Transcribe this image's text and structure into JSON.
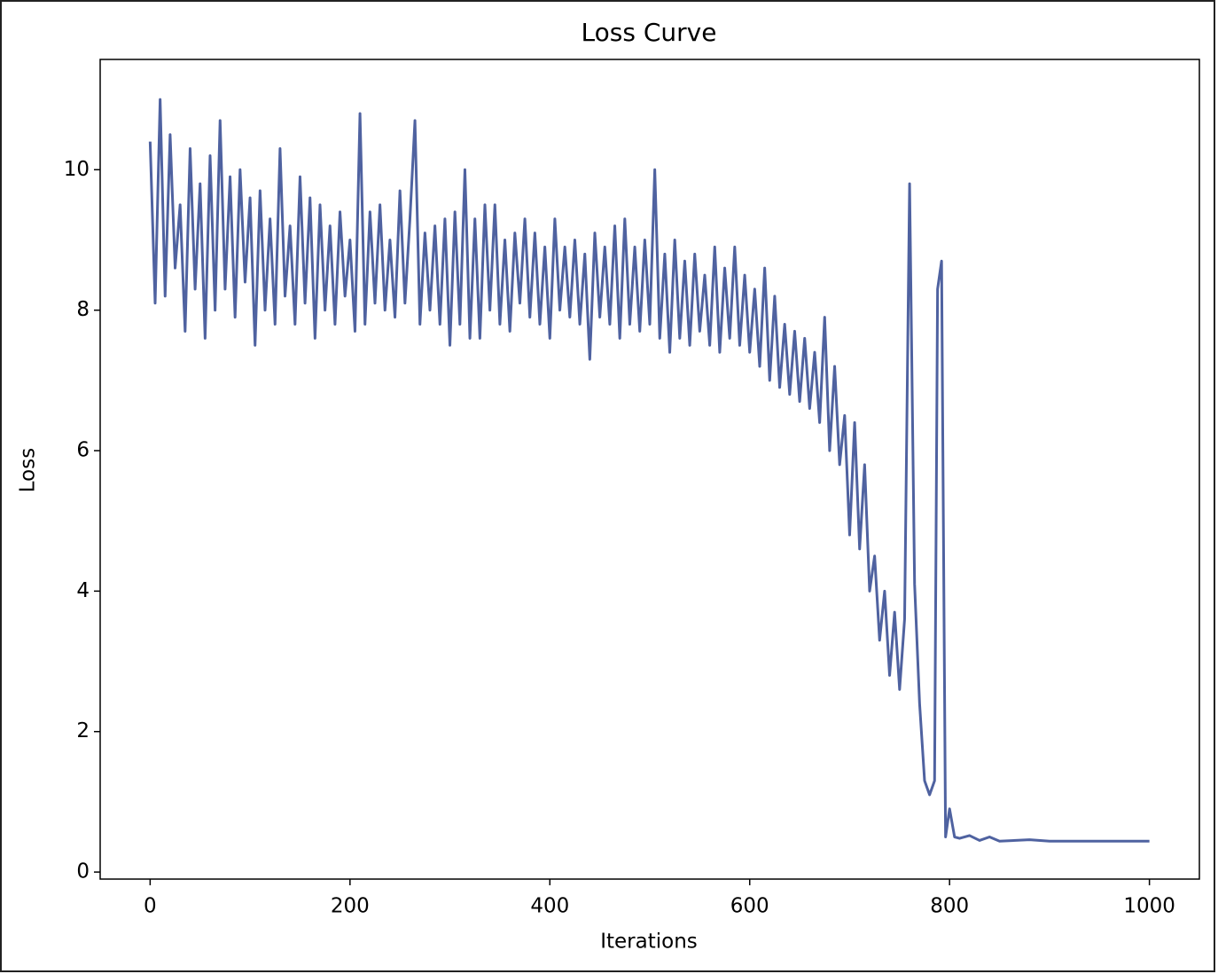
{
  "chart_data": {
    "type": "line",
    "title": "Loss Curve",
    "x_label": "Iterations",
    "y_label": "Loss",
    "x": [
      0,
      5,
      10,
      15,
      20,
      25,
      30,
      35,
      40,
      45,
      50,
      55,
      60,
      65,
      70,
      75,
      80,
      85,
      90,
      95,
      100,
      105,
      110,
      115,
      120,
      125,
      130,
      135,
      140,
      145,
      150,
      155,
      160,
      165,
      170,
      175,
      180,
      185,
      190,
      195,
      200,
      205,
      210,
      215,
      220,
      225,
      230,
      235,
      240,
      245,
      250,
      255,
      260,
      265,
      270,
      275,
      280,
      285,
      290,
      295,
      300,
      305,
      310,
      315,
      320,
      325,
      330,
      335,
      340,
      345,
      350,
      355,
      360,
      365,
      370,
      375,
      380,
      385,
      390,
      395,
      400,
      405,
      410,
      415,
      420,
      425,
      430,
      435,
      440,
      445,
      450,
      455,
      460,
      465,
      470,
      475,
      480,
      485,
      490,
      495,
      500,
      505,
      510,
      515,
      520,
      525,
      530,
      535,
      540,
      545,
      550,
      555,
      560,
      565,
      570,
      575,
      580,
      585,
      590,
      595,
      600,
      605,
      610,
      615,
      620,
      625,
      630,
      635,
      640,
      645,
      650,
      655,
      660,
      665,
      670,
      675,
      680,
      685,
      690,
      695,
      700,
      705,
      710,
      715,
      720,
      725,
      730,
      735,
      740,
      745,
      750,
      755,
      760,
      765,
      770,
      775,
      780,
      785,
      788,
      792,
      796,
      800,
      805,
      810,
      820,
      830,
      840,
      850,
      880,
      900,
      950,
      1000
    ],
    "series": [
      {
        "color": "#4f62a0",
        "values": [
          10.4,
          8.1,
          11.0,
          8.2,
          10.5,
          8.6,
          9.5,
          7.7,
          10.3,
          8.3,
          9.8,
          7.6,
          10.2,
          8.0,
          10.7,
          8.3,
          9.9,
          7.9,
          10.0,
          8.4,
          9.6,
          7.5,
          9.7,
          8.0,
          9.3,
          7.8,
          10.3,
          8.2,
          9.2,
          7.8,
          9.9,
          8.1,
          9.6,
          7.6,
          9.5,
          8.0,
          9.2,
          7.8,
          9.4,
          8.2,
          9.0,
          7.7,
          10.8,
          7.8,
          9.4,
          8.1,
          9.5,
          8.0,
          9.0,
          7.9,
          9.7,
          8.1,
          9.3,
          10.7,
          7.8,
          9.1,
          8.0,
          9.2,
          7.8,
          9.3,
          7.5,
          9.4,
          7.8,
          10.0,
          7.6,
          9.3,
          7.6,
          9.5,
          8.0,
          9.5,
          7.8,
          9.0,
          7.7,
          9.1,
          8.1,
          9.3,
          7.9,
          9.1,
          7.8,
          8.9,
          7.6,
          9.3,
          8.0,
          8.9,
          7.9,
          9.0,
          7.8,
          8.8,
          7.3,
          9.1,
          7.9,
          8.9,
          7.8,
          9.2,
          7.6,
          9.3,
          7.8,
          8.9,
          7.7,
          9.0,
          7.8,
          10.0,
          7.6,
          8.8,
          7.4,
          9.0,
          7.6,
          8.7,
          7.5,
          8.8,
          7.7,
          8.5,
          7.5,
          8.9,
          7.4,
          8.6,
          7.6,
          8.9,
          7.5,
          8.5,
          7.4,
          8.3,
          7.2,
          8.6,
          7.0,
          8.2,
          6.9,
          7.8,
          6.8,
          7.7,
          6.7,
          7.6,
          6.6,
          7.4,
          6.4,
          7.9,
          6.0,
          7.2,
          5.8,
          6.5,
          4.8,
          6.4,
          4.6,
          5.8,
          4.0,
          4.5,
          3.3,
          4.0,
          2.8,
          3.7,
          2.6,
          3.6,
          9.8,
          4.1,
          2.4,
          1.3,
          1.1,
          1.3,
          8.3,
          8.7,
          0.5,
          0.9,
          0.5,
          0.48,
          0.52,
          0.45,
          0.5,
          0.44,
          0.46,
          0.44,
          0.44,
          0.44
        ]
      }
    ],
    "xlim": [
      -50,
      1050
    ],
    "xticks": [
      0,
      200,
      400,
      600,
      800,
      1000
    ],
    "ylim": [
      -0.1,
      11.57
    ],
    "yticks": [
      0,
      2,
      4,
      6,
      8,
      10
    ]
  }
}
